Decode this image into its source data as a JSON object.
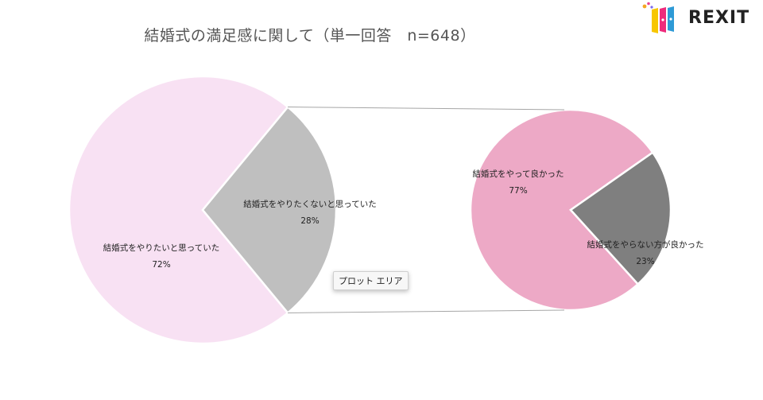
{
  "chart_data": {
    "type": "pie",
    "title": "結婚式の満足感に関して（単一回答　n=648）",
    "primary": {
      "slices": [
        {
          "label": "結婚式をやりたいと思っていた",
          "value": 72,
          "value_label": "72%",
          "color": "#f8e1f3"
        },
        {
          "label": "結婚式をやりたくないと思っていた",
          "value": 28,
          "value_label": "28%",
          "color": "#bfbfbf"
        }
      ]
    },
    "secondary": {
      "slices": [
        {
          "label": "結婚式をやって良かった",
          "value": 77,
          "value_label": "77%",
          "color": "#eda9c6"
        },
        {
          "label": "結婚式をやらない方が良かった",
          "value": 23,
          "value_label": "23%",
          "color": "#7f7f7f"
        }
      ]
    },
    "connector_color": "#a6a6a6"
  },
  "tooltip": {
    "label": "プロット エリア"
  },
  "logo": {
    "text": "REXIT"
  }
}
